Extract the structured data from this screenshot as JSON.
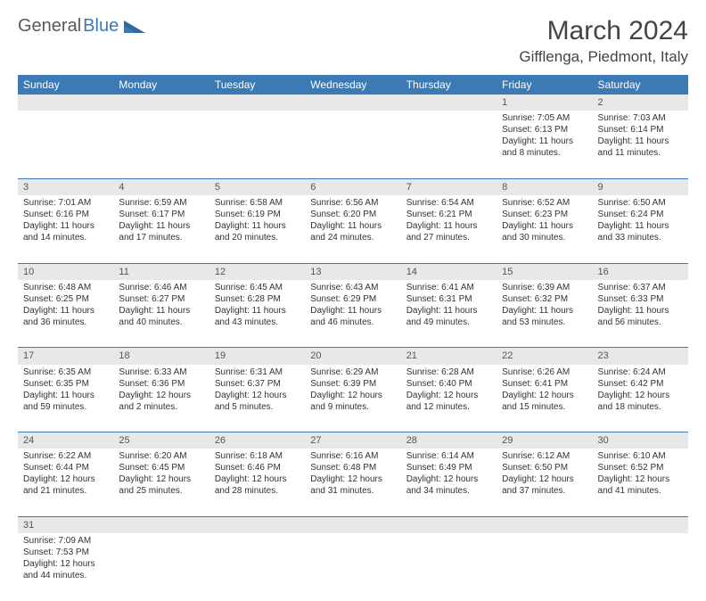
{
  "logo": {
    "text1": "General",
    "text2": "Blue"
  },
  "title": "March 2024",
  "location": "Gifflenga, Piedmont, Italy",
  "colors": {
    "header_bg": "#3b7ab5",
    "header_fg": "#ffffff",
    "daynum_bg": "#e8e8e8",
    "border": "#3b7ab5",
    "text": "#333333"
  },
  "weekdays": [
    "Sunday",
    "Monday",
    "Tuesday",
    "Wednesday",
    "Thursday",
    "Friday",
    "Saturday"
  ],
  "weeks": [
    [
      null,
      null,
      null,
      null,
      null,
      {
        "n": "1",
        "sr": "Sunrise: 7:05 AM",
        "ss": "Sunset: 6:13 PM",
        "dl": "Daylight: 11 hours and 8 minutes."
      },
      {
        "n": "2",
        "sr": "Sunrise: 7:03 AM",
        "ss": "Sunset: 6:14 PM",
        "dl": "Daylight: 11 hours and 11 minutes."
      }
    ],
    [
      {
        "n": "3",
        "sr": "Sunrise: 7:01 AM",
        "ss": "Sunset: 6:16 PM",
        "dl": "Daylight: 11 hours and 14 minutes."
      },
      {
        "n": "4",
        "sr": "Sunrise: 6:59 AM",
        "ss": "Sunset: 6:17 PM",
        "dl": "Daylight: 11 hours and 17 minutes."
      },
      {
        "n": "5",
        "sr": "Sunrise: 6:58 AM",
        "ss": "Sunset: 6:19 PM",
        "dl": "Daylight: 11 hours and 20 minutes."
      },
      {
        "n": "6",
        "sr": "Sunrise: 6:56 AM",
        "ss": "Sunset: 6:20 PM",
        "dl": "Daylight: 11 hours and 24 minutes."
      },
      {
        "n": "7",
        "sr": "Sunrise: 6:54 AM",
        "ss": "Sunset: 6:21 PM",
        "dl": "Daylight: 11 hours and 27 minutes."
      },
      {
        "n": "8",
        "sr": "Sunrise: 6:52 AM",
        "ss": "Sunset: 6:23 PM",
        "dl": "Daylight: 11 hours and 30 minutes."
      },
      {
        "n": "9",
        "sr": "Sunrise: 6:50 AM",
        "ss": "Sunset: 6:24 PM",
        "dl": "Daylight: 11 hours and 33 minutes."
      }
    ],
    [
      {
        "n": "10",
        "sr": "Sunrise: 6:48 AM",
        "ss": "Sunset: 6:25 PM",
        "dl": "Daylight: 11 hours and 36 minutes."
      },
      {
        "n": "11",
        "sr": "Sunrise: 6:46 AM",
        "ss": "Sunset: 6:27 PM",
        "dl": "Daylight: 11 hours and 40 minutes."
      },
      {
        "n": "12",
        "sr": "Sunrise: 6:45 AM",
        "ss": "Sunset: 6:28 PM",
        "dl": "Daylight: 11 hours and 43 minutes."
      },
      {
        "n": "13",
        "sr": "Sunrise: 6:43 AM",
        "ss": "Sunset: 6:29 PM",
        "dl": "Daylight: 11 hours and 46 minutes."
      },
      {
        "n": "14",
        "sr": "Sunrise: 6:41 AM",
        "ss": "Sunset: 6:31 PM",
        "dl": "Daylight: 11 hours and 49 minutes."
      },
      {
        "n": "15",
        "sr": "Sunrise: 6:39 AM",
        "ss": "Sunset: 6:32 PM",
        "dl": "Daylight: 11 hours and 53 minutes."
      },
      {
        "n": "16",
        "sr": "Sunrise: 6:37 AM",
        "ss": "Sunset: 6:33 PM",
        "dl": "Daylight: 11 hours and 56 minutes."
      }
    ],
    [
      {
        "n": "17",
        "sr": "Sunrise: 6:35 AM",
        "ss": "Sunset: 6:35 PM",
        "dl": "Daylight: 11 hours and 59 minutes."
      },
      {
        "n": "18",
        "sr": "Sunrise: 6:33 AM",
        "ss": "Sunset: 6:36 PM",
        "dl": "Daylight: 12 hours and 2 minutes."
      },
      {
        "n": "19",
        "sr": "Sunrise: 6:31 AM",
        "ss": "Sunset: 6:37 PM",
        "dl": "Daylight: 12 hours and 5 minutes."
      },
      {
        "n": "20",
        "sr": "Sunrise: 6:29 AM",
        "ss": "Sunset: 6:39 PM",
        "dl": "Daylight: 12 hours and 9 minutes."
      },
      {
        "n": "21",
        "sr": "Sunrise: 6:28 AM",
        "ss": "Sunset: 6:40 PM",
        "dl": "Daylight: 12 hours and 12 minutes."
      },
      {
        "n": "22",
        "sr": "Sunrise: 6:26 AM",
        "ss": "Sunset: 6:41 PM",
        "dl": "Daylight: 12 hours and 15 minutes."
      },
      {
        "n": "23",
        "sr": "Sunrise: 6:24 AM",
        "ss": "Sunset: 6:42 PM",
        "dl": "Daylight: 12 hours and 18 minutes."
      }
    ],
    [
      {
        "n": "24",
        "sr": "Sunrise: 6:22 AM",
        "ss": "Sunset: 6:44 PM",
        "dl": "Daylight: 12 hours and 21 minutes."
      },
      {
        "n": "25",
        "sr": "Sunrise: 6:20 AM",
        "ss": "Sunset: 6:45 PM",
        "dl": "Daylight: 12 hours and 25 minutes."
      },
      {
        "n": "26",
        "sr": "Sunrise: 6:18 AM",
        "ss": "Sunset: 6:46 PM",
        "dl": "Daylight: 12 hours and 28 minutes."
      },
      {
        "n": "27",
        "sr": "Sunrise: 6:16 AM",
        "ss": "Sunset: 6:48 PM",
        "dl": "Daylight: 12 hours and 31 minutes."
      },
      {
        "n": "28",
        "sr": "Sunrise: 6:14 AM",
        "ss": "Sunset: 6:49 PM",
        "dl": "Daylight: 12 hours and 34 minutes."
      },
      {
        "n": "29",
        "sr": "Sunrise: 6:12 AM",
        "ss": "Sunset: 6:50 PM",
        "dl": "Daylight: 12 hours and 37 minutes."
      },
      {
        "n": "30",
        "sr": "Sunrise: 6:10 AM",
        "ss": "Sunset: 6:52 PM",
        "dl": "Daylight: 12 hours and 41 minutes."
      }
    ],
    [
      {
        "n": "31",
        "sr": "Sunrise: 7:09 AM",
        "ss": "Sunset: 7:53 PM",
        "dl": "Daylight: 12 hours and 44 minutes."
      },
      null,
      null,
      null,
      null,
      null,
      null
    ]
  ]
}
